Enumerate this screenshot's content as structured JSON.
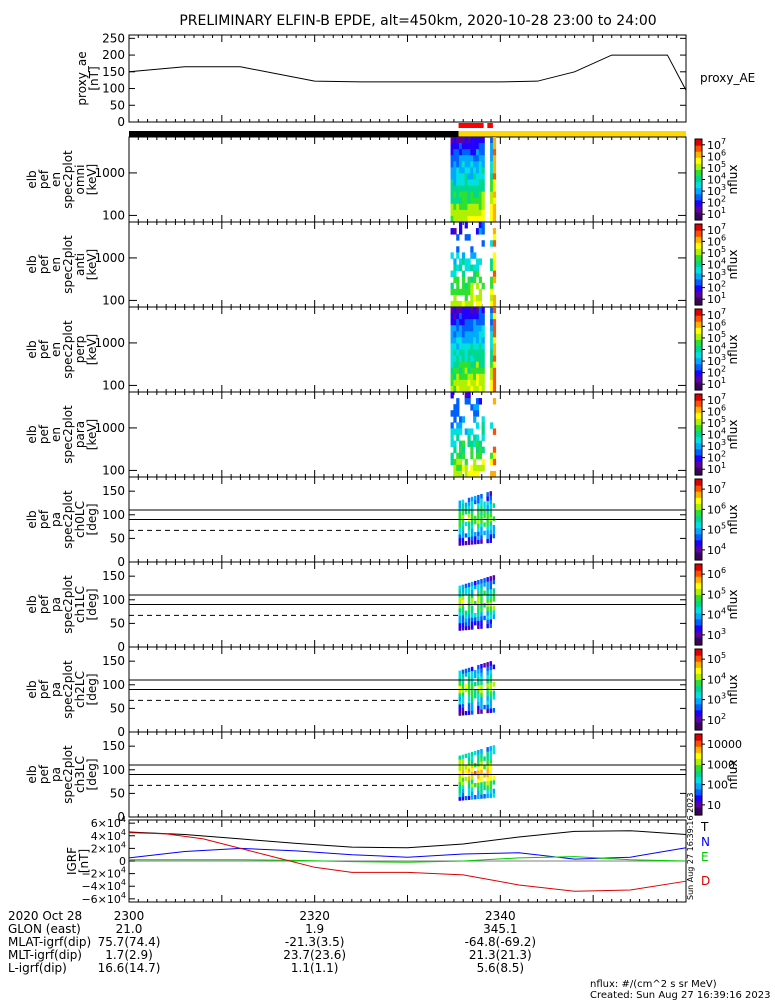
{
  "title": "PRELIMINARY ELFIN-B EPDE, alt=450km, 2020-10-28 23:00 to 24:00",
  "chart_data": [
    {
      "type": "line",
      "ylabel": "proxy_ae [nT]",
      "ylabel_lines": [
        "proxy_ae",
        "[nT]"
      ],
      "ylim": [
        0,
        260
      ],
      "yticks": [
        "0",
        "50",
        "100",
        "150",
        "200",
        "250"
      ],
      "legend": "proxy_AE",
      "series": [
        {
          "name": "proxy_AE",
          "x": [
            2300,
            2306,
            2312,
            2320,
            2325,
            2330,
            2335,
            2340,
            2344,
            2348,
            2352,
            2358,
            2360
          ],
          "values": [
            150,
            165,
            165,
            122,
            120,
            120,
            120,
            120,
            122,
            150,
            200,
            200,
            95
          ]
        }
      ]
    },
    {
      "type": "heatmap",
      "ylabel_lines": [
        "elb",
        "pef",
        "en",
        "spec2plot",
        "omni",
        "[keV]"
      ],
      "yscale": "log",
      "yticks": [
        "100",
        "1000"
      ],
      "colorbar_label": "nflux",
      "colorbar_ticks": [
        "10^1",
        "10^2",
        "10^3",
        "10^4",
        "10^5",
        "10^6",
        "10^7"
      ],
      "coverage_minutes": [
        2335.5,
        2339.5
      ]
    },
    {
      "type": "heatmap",
      "ylabel_lines": [
        "elb",
        "pef",
        "en",
        "spec2plot",
        "anti",
        "[keV]"
      ],
      "yscale": "log",
      "yticks": [
        "100",
        "1000"
      ],
      "colorbar_label": "nflux",
      "colorbar_ticks": [
        "10^1",
        "10^2",
        "10^3",
        "10^4",
        "10^5",
        "10^6",
        "10^7"
      ],
      "coverage_minutes": [
        2335.5,
        2339.5
      ]
    },
    {
      "type": "heatmap",
      "ylabel_lines": [
        "elb",
        "pef",
        "en",
        "spec2plot",
        "perp",
        "[keV]"
      ],
      "yscale": "log",
      "yticks": [
        "100",
        "1000"
      ],
      "colorbar_label": "nflux",
      "colorbar_ticks": [
        "10^1",
        "10^2",
        "10^3",
        "10^4",
        "10^5",
        "10^6",
        "10^7"
      ],
      "coverage_minutes": [
        2335.5,
        2339.5
      ]
    },
    {
      "type": "heatmap",
      "ylabel_lines": [
        "elb",
        "pef",
        "en",
        "spec2plot",
        "para",
        "[keV]"
      ],
      "yscale": "log",
      "yticks": [
        "100",
        "1000"
      ],
      "colorbar_label": "nflux",
      "colorbar_ticks": [
        "10^1",
        "10^2",
        "10^3",
        "10^4",
        "10^5",
        "10^6",
        "10^7"
      ],
      "coverage_minutes": [
        2335.5,
        2339.5
      ]
    },
    {
      "type": "heatmap",
      "ylabel_lines": [
        "elb",
        "pef",
        "pa",
        "spec2plot",
        "ch0LC",
        "[deg]"
      ],
      "ylim": [
        0,
        180
      ],
      "yticks": [
        "0",
        "50",
        "100",
        "150"
      ],
      "reference_lines_deg": [
        110,
        90,
        67
      ],
      "colorbar_label": "nflux",
      "colorbar_ticks": [
        "10^4",
        "10^5",
        "10^6",
        "10^7"
      ]
    },
    {
      "type": "heatmap",
      "ylabel_lines": [
        "elb",
        "pef",
        "pa",
        "spec2plot",
        "ch1LC",
        "[deg]"
      ],
      "ylim": [
        0,
        180
      ],
      "yticks": [
        "0",
        "50",
        "100",
        "150"
      ],
      "reference_lines_deg": [
        110,
        90,
        67
      ],
      "colorbar_label": "nflux",
      "colorbar_ticks": [
        "10^3",
        "10^4",
        "10^5",
        "10^6"
      ]
    },
    {
      "type": "heatmap",
      "ylabel_lines": [
        "elb",
        "pef",
        "pa",
        "spec2plot",
        "ch2LC",
        "[deg]"
      ],
      "ylim": [
        0,
        180
      ],
      "yticks": [
        "0",
        "50",
        "100",
        "150"
      ],
      "reference_lines_deg": [
        110,
        90,
        67
      ],
      "colorbar_label": "nflux",
      "colorbar_ticks": [
        "10^2",
        "10^3",
        "10^4",
        "10^5"
      ]
    },
    {
      "type": "heatmap",
      "ylabel_lines": [
        "elb",
        "pef",
        "pa",
        "spec2plot",
        "ch3LC",
        "[deg]"
      ],
      "ylim": [
        0,
        180
      ],
      "yticks": [
        "0",
        "50",
        "100",
        "150"
      ],
      "reference_lines_deg": [
        110,
        90,
        67
      ],
      "colorbar_label": "nflux",
      "colorbar_ticks": [
        "10",
        "100",
        "1000",
        "10000"
      ]
    },
    {
      "type": "line",
      "ylabel_lines": [
        "IGRF",
        "[nT]"
      ],
      "ylim": [
        -65000,
        65000
      ],
      "yticks": [
        "6×10^4",
        "4×10^4",
        "2×10^4",
        "0",
        "−2×10^4",
        "−4×10^4",
        "−6×10^4"
      ],
      "series": [
        {
          "name": "T",
          "color": "#000000",
          "x": [
            2300,
            2306,
            2312,
            2318,
            2324,
            2330,
            2336,
            2342,
            2348,
            2354,
            2360
          ],
          "values": [
            46000,
            42000,
            35000,
            28000,
            22000,
            21000,
            27000,
            38000,
            47000,
            48000,
            42000
          ]
        },
        {
          "name": "N",
          "color": "#0000ff",
          "x": [
            2300,
            2306,
            2312,
            2318,
            2324,
            2330,
            2336,
            2342,
            2348,
            2354,
            2360
          ],
          "values": [
            5000,
            15000,
            20000,
            16000,
            10000,
            6000,
            11000,
            13000,
            3000,
            6000,
            21000
          ]
        },
        {
          "name": "E",
          "color": "#00cc00",
          "x": [
            2300,
            2306,
            2312,
            2318,
            2324,
            2330,
            2336,
            2342,
            2348,
            2354,
            2360
          ],
          "values": [
            2000,
            2000,
            2000,
            1000,
            -1000,
            -2000,
            0,
            5000,
            7000,
            2000,
            0
          ]
        },
        {
          "name": "D",
          "color": "#dd0000",
          "x": [
            2300,
            2304,
            2308,
            2312,
            2316,
            2320,
            2324,
            2330,
            2336,
            2342,
            2348,
            2354,
            2360
          ],
          "values": [
            45000,
            43000,
            35000,
            20000,
            5000,
            -10000,
            -18000,
            -18000,
            -22000,
            -38000,
            -48000,
            -46000,
            -32000
          ]
        }
      ]
    }
  ],
  "xaxis": {
    "ticks": [
      "2300",
      "2320",
      "2340"
    ],
    "tick_minutes": [
      2300,
      2320,
      2340
    ],
    "range_minutes": [
      2300,
      2360
    ]
  },
  "bars": {
    "note": "status bars above spectrograms",
    "black_until_minute": 2335.5,
    "yellow_from_minute": 2335.5,
    "red_segments_minutes": [
      [
        2335.5,
        2338.2
      ],
      [
        2338.6,
        2339.2
      ]
    ]
  },
  "footer": {
    "rows": [
      {
        "label": "2020 Oct 28",
        "v1": "2300",
        "v2": "2320",
        "v3": "2340"
      },
      {
        "label": "GLON (east)",
        "v1": "21.0",
        "v2": "1.9",
        "v3": "345.1"
      },
      {
        "label": "MLAT-igrf(dip)",
        "v1": "75.7(74.4)",
        "v2": "-21.3(3.5)",
        "v3": "-64.8(-69.2)"
      },
      {
        "label": "MLT-igrf(dip)",
        "v1": "1.7(2.9)",
        "v2": "23.7(23.6)",
        "v3": "21.3(21.3)"
      },
      {
        "label": "L-igrf(dip)",
        "v1": "16.6(14.7)",
        "v2": "1.1(1.1)",
        "v3": "5.6(8.5)"
      }
    ],
    "units_note": "nflux: #/(cm^2 s sr MeV)",
    "created": "Created: Sun Aug 27 16:39:16 2023",
    "side_stamp": "Sun Aug 27 16:39:16 2023"
  }
}
